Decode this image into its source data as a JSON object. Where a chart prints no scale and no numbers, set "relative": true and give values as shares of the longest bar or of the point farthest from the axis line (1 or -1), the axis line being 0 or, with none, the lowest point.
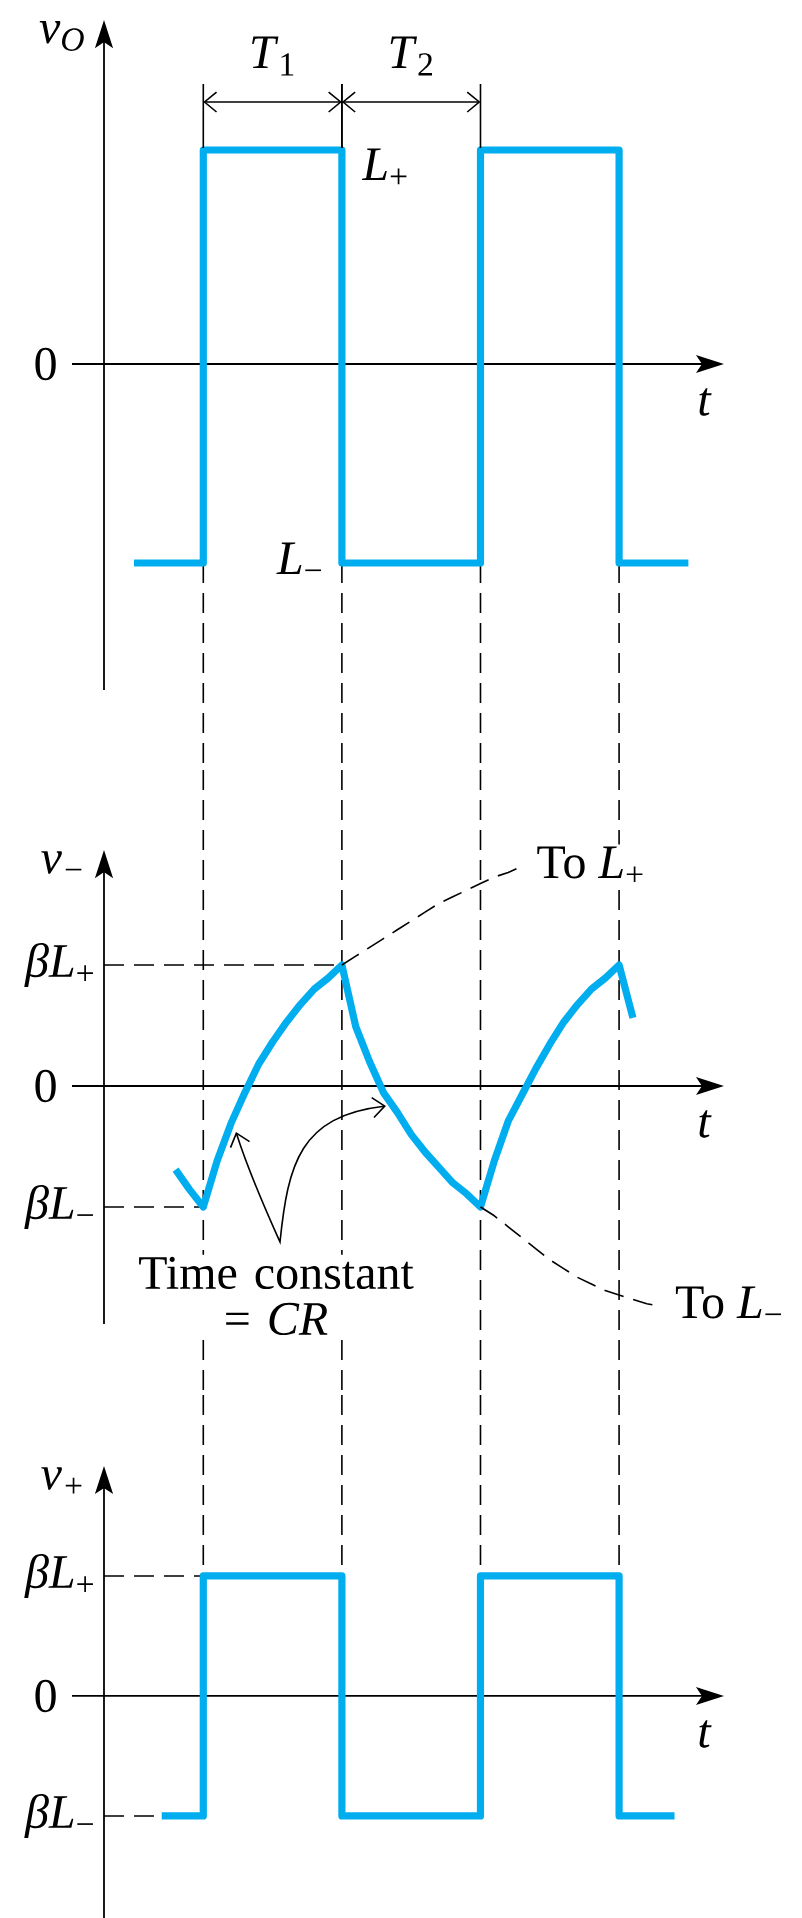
{
  "chart_data": [
    {
      "type": "step",
      "xlabel": "t",
      "ylabel": "v$_{O}$",
      "relative": true,
      "color": "#00aeef",
      "categories": [
        null,
        null,
        null,
        null,
        null,
        null,
        null,
        null,
        null,
        null,
        null,
        null,
        null,
        null,
        null,
        null,
        null,
        null,
        null,
        null,
        null,
        null,
        null,
        null,
        null,
        null,
        null,
        null,
        null,
        null,
        null,
        null,
        null,
        null,
        null,
        null,
        null,
        null,
        null,
        null,
        null
      ],
      "values": [
        -0.93,
        -0.93,
        -0.93,
        -0.93,
        -0.93,
        1,
        1,
        1,
        1,
        1,
        1,
        1,
        1,
        1,
        1,
        -0.93,
        -0.93,
        -0.93,
        -0.93,
        -0.93,
        -0.93,
        -0.93,
        -0.93,
        -0.93,
        -0.93,
        1,
        1,
        1,
        1,
        1,
        1,
        1,
        1,
        1,
        1,
        -0.93,
        -0.93,
        -0.93,
        -0.93,
        -0.93,
        -0.93
      ],
      "annotations": [
        "*T*$_{1}$",
        "*T*$_{2}$",
        "*L*$_{+}$",
        "*L*$_{−}$",
        "0"
      ]
    },
    {
      "type": "line",
      "xlabel": "t",
      "ylabel": "v$_{−}$",
      "relative": true,
      "grid": "x",
      "categories": [
        null,
        null,
        null,
        null,
        null,
        null,
        null,
        null,
        null,
        null,
        null,
        null,
        null,
        null,
        null,
        null,
        null,
        null,
        null,
        null,
        null,
        null,
        null,
        null,
        null,
        null,
        null,
        null,
        null,
        null,
        null,
        null,
        null,
        null,
        null,
        null,
        null,
        null,
        null,
        null,
        null
      ],
      "series": [
        {
          "color": "#00aeef",
          "values": [
            null,
            null,
            null,
            -0.38,
            -0.47,
            -0.55,
            -0.34,
            -0.17,
            -0.03,
            0.1,
            0.2,
            0.29,
            0.37,
            0.44,
            0.49,
            0.55,
            0.27,
            0.11,
            -0.03,
            -0.12,
            -0.22,
            -0.3,
            -0.37,
            -0.44,
            -0.49,
            -0.55,
            -0.34,
            -0.16,
            -0.04,
            0.08,
            0.19,
            0.29,
            0.37,
            0.44,
            0.49,
            0.55,
            0.31,
            null,
            null,
            null,
            null
          ]
        },
        {
          "name": "To *L*$_{+}$",
          "color": "#000000",
          "line_style": "dashed",
          "values": [
            null,
            null,
            null,
            null,
            null,
            null,
            null,
            null,
            null,
            null,
            null,
            null,
            null,
            null,
            null,
            0.55,
            0.59,
            0.63,
            0.67,
            0.71,
            0.75,
            0.79,
            0.83,
            0.86,
            0.89,
            0.92,
            0.95,
            0.97,
            1,
            null,
            null,
            null,
            null,
            null,
            null,
            null,
            null,
            null,
            null,
            null,
            null
          ]
        },
        {
          "name": "To *L*$_{−}$",
          "color": "#000000",
          "line_style": "dashed",
          "values": [
            null,
            null,
            null,
            null,
            null,
            null,
            null,
            null,
            null,
            null,
            null,
            null,
            null,
            null,
            null,
            null,
            null,
            null,
            null,
            null,
            null,
            null,
            null,
            null,
            null,
            -0.55,
            -0.59,
            -0.64,
            -0.69,
            -0.74,
            -0.79,
            -0.83,
            -0.87,
            -0.9,
            -0.93,
            -0.95,
            -0.97,
            -0.99,
            -1,
            null,
            null
          ]
        }
      ],
      "ref_lines": [
        {
          "axis": "y",
          "value": 0.55,
          "label": "*βL*$_{+}$",
          "line_style": "dashed",
          "color": "#000000"
        },
        {
          "axis": "y",
          "value": -0.55,
          "label": "*βL*$_{−}$",
          "line_style": "dashed",
          "color": "#000000"
        }
      ],
      "annotations": [
        "0",
        "Time constant = *CR*"
      ]
    },
    {
      "type": "step",
      "xlabel": "t",
      "ylabel": "v$_{+}$",
      "relative": true,
      "color": "#00aeef",
      "categories": [
        null,
        null,
        null,
        null,
        null,
        null,
        null,
        null,
        null,
        null,
        null,
        null,
        null,
        null,
        null,
        null,
        null,
        null,
        null,
        null,
        null,
        null,
        null,
        null,
        null,
        null,
        null,
        null,
        null,
        null,
        null,
        null,
        null,
        null,
        null,
        null,
        null,
        null,
        null,
        null,
        null
      ],
      "values": [
        null,
        null,
        -1,
        -1,
        -1,
        1,
        1,
        1,
        1,
        1,
        1,
        1,
        1,
        1,
        1,
        -1,
        -1,
        -1,
        -1,
        -1,
        -1,
        -1,
        -1,
        -1,
        -1,
        1,
        1,
        1,
        1,
        1,
        1,
        1,
        1,
        1,
        1,
        -1,
        -1,
        -1,
        -1,
        -1,
        null
      ],
      "ref_lines": [
        {
          "axis": "y",
          "value": 1,
          "label": "*βL*$_{+}$",
          "line_style": "dashed",
          "color": "#000000"
        },
        {
          "axis": "y",
          "value": -1,
          "label": "*βL*$_{−}$",
          "line_style": "dashed",
          "color": "#000000"
        }
      ],
      "annotations": [
        "0"
      ]
    }
  ]
}
